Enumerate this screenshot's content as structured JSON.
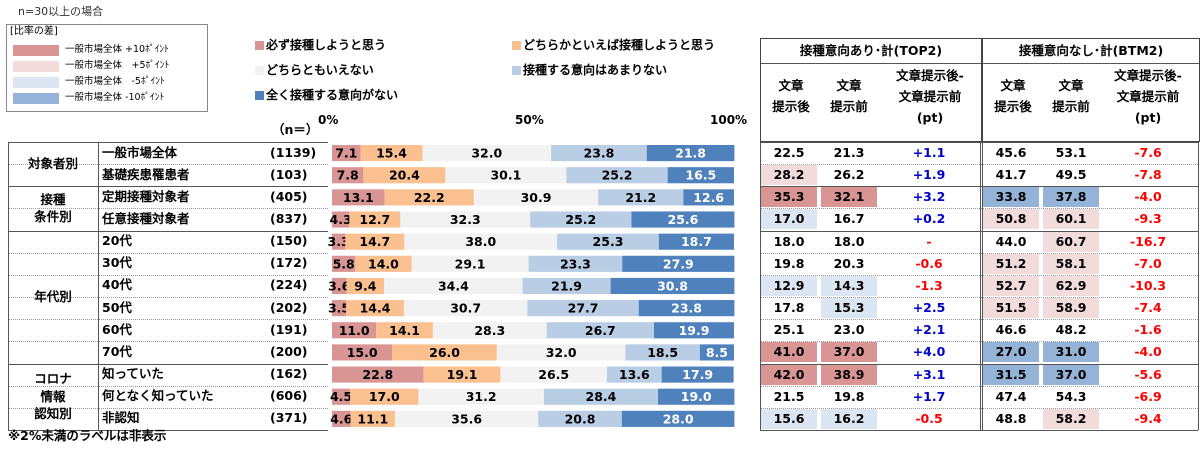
{
  "note_top": "n=30以上の場合",
  "legend_diff": {
    "title": "[比率の差]",
    "items": [
      {
        "label": "一般市場全体 +10ﾎﾟｲﾝﾄ",
        "color": "#d99594"
      },
      {
        "label": "一般市場全体　+5ﾎﾟｲﾝﾄ",
        "color": "#f2dcdb"
      },
      {
        "label": "一般市場全体　-5ﾎﾟｲﾝﾄ",
        "color": "#dce6f2"
      },
      {
        "label": "一般市場全体 -10ﾎﾟｲﾝﾄ",
        "color": "#95b3d7"
      }
    ]
  },
  "colors": {
    "pos10": "#d99594",
    "pos5": "#f2dcdb",
    "neg5": "#dce6f2",
    "neg10": "#95b3d7",
    "plus_text": "#0000cc",
    "minus_text": "#ff0000"
  },
  "n_label": "（n＝）",
  "footnote": "※2%未満のラベルは非表示",
  "table_headers": {
    "top2_title": "接種意向あり･計(TOP2)",
    "btm2_title": "接種意向なし･計(BTM2)",
    "col_after": "文章\n提示後",
    "col_before": "文章\n提示前",
    "col_diff": "文章提示後-\n文章提示前\n(pt)"
  },
  "groups": [
    {
      "label": "対象者別",
      "start": 0,
      "count": 2
    },
    {
      "label": "接種\n条件別",
      "start": 2,
      "count": 2
    },
    {
      "label": "年代別",
      "start": 4,
      "count": 6
    },
    {
      "label": "コロナ\n情報\n認知別",
      "start": 10,
      "count": 3
    }
  ],
  "rows": [
    {
      "label": "一般市場全体",
      "n": "(1139)",
      "top2": {
        "after": "22.5",
        "before": "21.3",
        "diff": "+1.1"
      },
      "btm2": {
        "after": "45.6",
        "before": "53.1",
        "diff": "-7.6"
      }
    },
    {
      "label": "基礎疾患罹患者",
      "n": "(103)",
      "top2": {
        "after": "28.2",
        "before": "26.2",
        "diff": "+1.9"
      },
      "btm2": {
        "after": "41.7",
        "before": "49.5",
        "diff": "-7.8"
      }
    },
    {
      "label": "定期接種対象者",
      "n": "(405)",
      "top2": {
        "after": "35.3",
        "before": "32.1",
        "diff": "+3.2"
      },
      "btm2": {
        "after": "33.8",
        "before": "37.8",
        "diff": "-4.0"
      }
    },
    {
      "label": "任意接種対象者",
      "n": "(837)",
      "top2": {
        "after": "17.0",
        "before": "16.7",
        "diff": "+0.2"
      },
      "btm2": {
        "after": "50.8",
        "before": "60.1",
        "diff": "-9.3"
      }
    },
    {
      "label": "20代",
      "n": "(150)",
      "top2": {
        "after": "18.0",
        "before": "18.0",
        "diff": "-"
      },
      "btm2": {
        "after": "44.0",
        "before": "60.7",
        "diff": "-16.7"
      }
    },
    {
      "label": "30代",
      "n": "(172)",
      "top2": {
        "after": "19.8",
        "before": "20.3",
        "diff": "-0.6"
      },
      "btm2": {
        "after": "51.2",
        "before": "58.1",
        "diff": "-7.0"
      }
    },
    {
      "label": "40代",
      "n": "(224)",
      "top2": {
        "after": "12.9",
        "before": "14.3",
        "diff": "-1.3"
      },
      "btm2": {
        "after": "52.7",
        "before": "62.9",
        "diff": "-10.3"
      }
    },
    {
      "label": "50代",
      "n": "(202)",
      "top2": {
        "after": "17.8",
        "before": "15.3",
        "diff": "+2.5"
      },
      "btm2": {
        "after": "51.5",
        "before": "58.9",
        "diff": "-7.4"
      }
    },
    {
      "label": "60代",
      "n": "(191)",
      "top2": {
        "after": "25.1",
        "before": "23.0",
        "diff": "+2.1"
      },
      "btm2": {
        "after": "46.6",
        "before": "48.2",
        "diff": "-1.6"
      }
    },
    {
      "label": "70代",
      "n": "(200)",
      "top2": {
        "after": "41.0",
        "before": "37.0",
        "diff": "+4.0"
      },
      "btm2": {
        "after": "27.0",
        "before": "31.0",
        "diff": "-4.0"
      }
    },
    {
      "label": "知っていた",
      "n": "(162)",
      "top2": {
        "after": "42.0",
        "before": "38.9",
        "diff": "+3.1"
      },
      "btm2": {
        "after": "31.5",
        "before": "37.0",
        "diff": "-5.6"
      }
    },
    {
      "label": "何となく知っていた",
      "n": "(606)",
      "top2": {
        "after": "21.5",
        "before": "19.8",
        "diff": "+1.7"
      },
      "btm2": {
        "after": "47.4",
        "before": "54.3",
        "diff": "-6.9"
      }
    },
    {
      "label": "非認知",
      "n": "(371)",
      "top2": {
        "after": "15.6",
        "before": "16.2",
        "diff": "-0.5"
      },
      "btm2": {
        "after": "48.8",
        "before": "58.2",
        "diff": "-9.4"
      }
    }
  ],
  "chart_data": {
    "type": "bar",
    "orientation": "horizontal-stacked-100",
    "title": "",
    "xlabel": "",
    "ylabel": "",
    "xlim": [
      0,
      100
    ],
    "x_ticks": [
      "0%",
      "50%",
      "100%"
    ],
    "categories": [
      "一般市場全体",
      "基礎疾患罹患者",
      "定期接種対象者",
      "任意接種対象者",
      "20代",
      "30代",
      "40代",
      "50代",
      "60代",
      "70代",
      "知っていた",
      "何となく知っていた",
      "非認知"
    ],
    "series": [
      {
        "name": "必ず接種しようと思う",
        "color": "#d99594",
        "text_color": "#000000",
        "values": [
          7.1,
          7.8,
          13.1,
          4.3,
          3.3,
          5.8,
          3.6,
          3.5,
          11.0,
          15.0,
          22.8,
          4.5,
          4.6
        ]
      },
      {
        "name": "どちらかといえば接種しようと思う",
        "color": "#fac090",
        "text_color": "#000000",
        "values": [
          15.4,
          20.4,
          22.2,
          12.7,
          14.7,
          14.0,
          9.4,
          14.4,
          14.1,
          26.0,
          19.1,
          17.0,
          11.1
        ]
      },
      {
        "name": "どちらともいえない",
        "color": "#f2f2f2",
        "text_color": "#000000",
        "values": [
          32.0,
          30.1,
          30.9,
          32.3,
          38.0,
          29.1,
          34.4,
          30.7,
          28.3,
          32.0,
          26.5,
          31.2,
          35.6
        ]
      },
      {
        "name": "接種する意向はあまりない",
        "color": "#b9cde5",
        "text_color": "#000000",
        "values": [
          23.8,
          25.2,
          21.2,
          25.2,
          25.3,
          23.3,
          21.9,
          27.7,
          26.7,
          18.5,
          13.6,
          28.4,
          20.8
        ]
      },
      {
        "name": "全く接種する意向がない",
        "color": "#4f81bd",
        "text_color": "#ffffff",
        "values": [
          21.8,
          16.5,
          12.6,
          25.6,
          18.7,
          27.9,
          30.8,
          23.8,
          19.9,
          8.5,
          17.9,
          19.0,
          28.0
        ]
      }
    ],
    "legend_position": "top"
  }
}
